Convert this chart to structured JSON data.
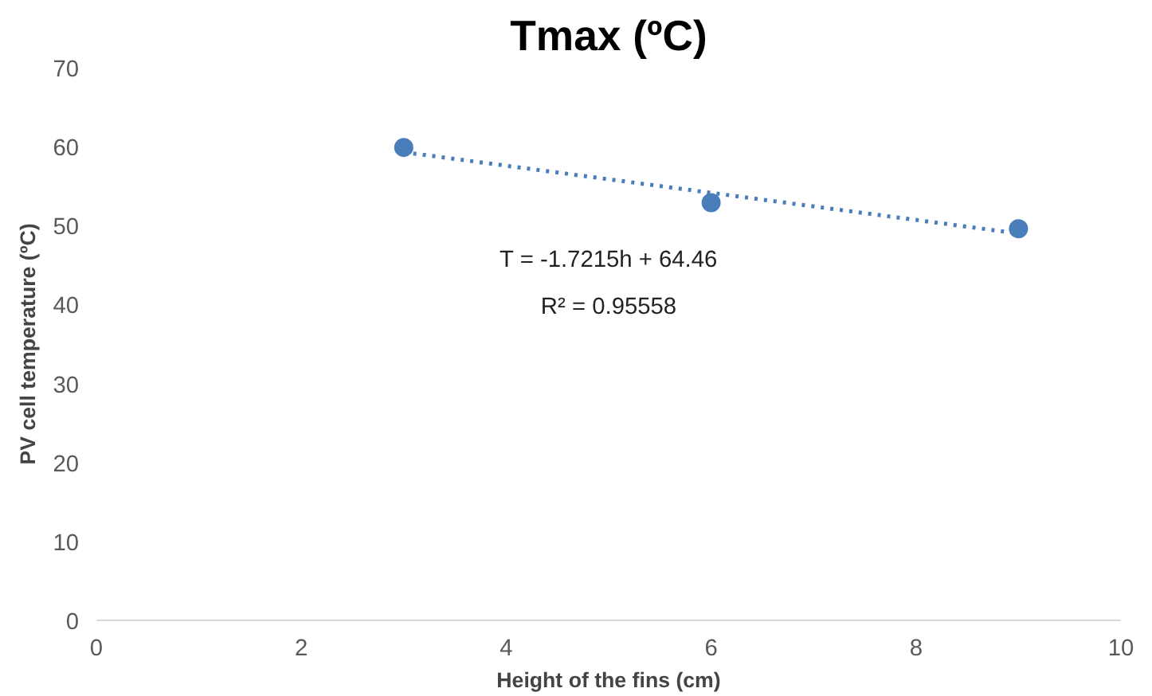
{
  "chart_data": {
    "type": "scatter",
    "title": "Tmax (ºC)",
    "xlabel": "Height of the fins (cm)",
    "ylabel": "PV cell temperature (ºC)",
    "series": [
      {
        "color": "#4a7ebb",
        "x": [
          3,
          6,
          9
        ],
        "values": [
          59.9,
          52.9,
          49.6
        ],
        "marker": "circle"
      },
      {
        "type": "line",
        "color": "#4a7ebb",
        "x": [
          3,
          9
        ],
        "values": [
          59.3,
          49.0
        ],
        "line_style": "dotted"
      }
    ],
    "annotations": [
      "T = -1.7215h + 64.46",
      "R² = 0.95558"
    ],
    "xlim": [
      0,
      10
    ],
    "xticks": [
      0,
      2,
      4,
      6,
      8,
      10
    ],
    "ylim": [
      0,
      70
    ],
    "yticks": [
      0,
      10,
      20,
      30,
      40,
      50,
      60,
      70
    ],
    "grid": false
  }
}
